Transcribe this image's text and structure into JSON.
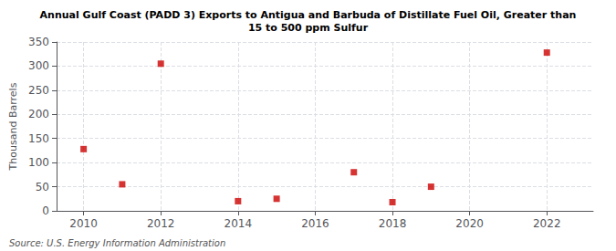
{
  "chart_data": {
    "type": "scatter",
    "title": "Annual Gulf Coast (PADD 3) Exports to Antigua and Barbuda of Distillate Fuel Oil, Greater than\n15 to 500 ppm Sulfur",
    "ylabel": "Thousand Barrels",
    "source": "Source: U.S. Energy Information Administration",
    "x": [
      2010,
      2011,
      2012,
      2014,
      2015,
      2017,
      2018,
      2019,
      2022
    ],
    "values": [
      128,
      55,
      305,
      20,
      25,
      80,
      18,
      50,
      328
    ],
    "color": "#cc0000",
    "marker": "square",
    "xlim": [
      2009.3,
      2023.2
    ],
    "xticks": [
      2010,
      2012,
      2014,
      2016,
      2018,
      2020,
      2022
    ],
    "ylim": [
      0,
      350
    ],
    "yticks": [
      0,
      50,
      100,
      150,
      200,
      250,
      300,
      350
    ],
    "grid": true
  }
}
